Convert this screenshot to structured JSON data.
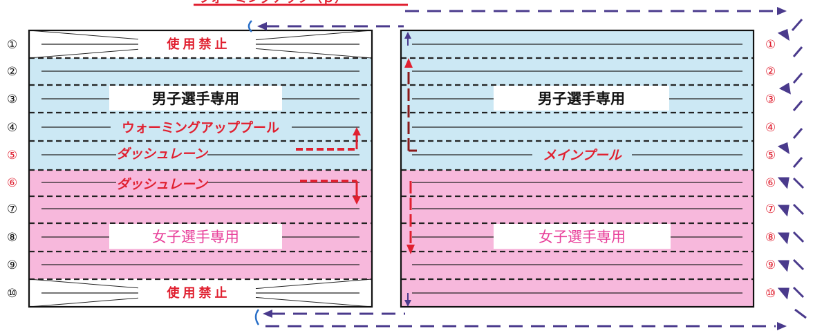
{
  "top_heading": "ウォーミングアップ（ｐ）",
  "lane_numbers": [
    "①",
    "②",
    "③",
    "④",
    "⑤",
    "⑥",
    "⑦",
    "⑧",
    "⑨",
    "⑩"
  ],
  "lane_number_colors": [
    "#111111",
    "#111111",
    "#111111",
    "#111111",
    "#e02030",
    "#e02030",
    "#111111",
    "#111111",
    "#111111",
    "#111111"
  ],
  "right_lane_number_color": "#e02030",
  "left_pool": {
    "closed_top": "使 用 禁 止",
    "closed_bottom": "使 用 禁 止",
    "men_label": "男子選手専用",
    "women_label": "女子選手専用",
    "warmup_label": "ウォーミングアッププール",
    "dash_lane_upper": "ダッシュレーン",
    "dash_lane_lower": "ダッシュレーン"
  },
  "right_pool": {
    "men_label": "男子選手専用",
    "women_label": "女子選手専用",
    "main_label": "メインプール"
  },
  "colors": {
    "men_zone": "#cce8f4",
    "women_zone": "#f7b8dc",
    "red": "#e02030",
    "pink_text": "#e8409a",
    "arrow_purple": "#4a3a8c",
    "dark_red": "#8b1a1a"
  }
}
